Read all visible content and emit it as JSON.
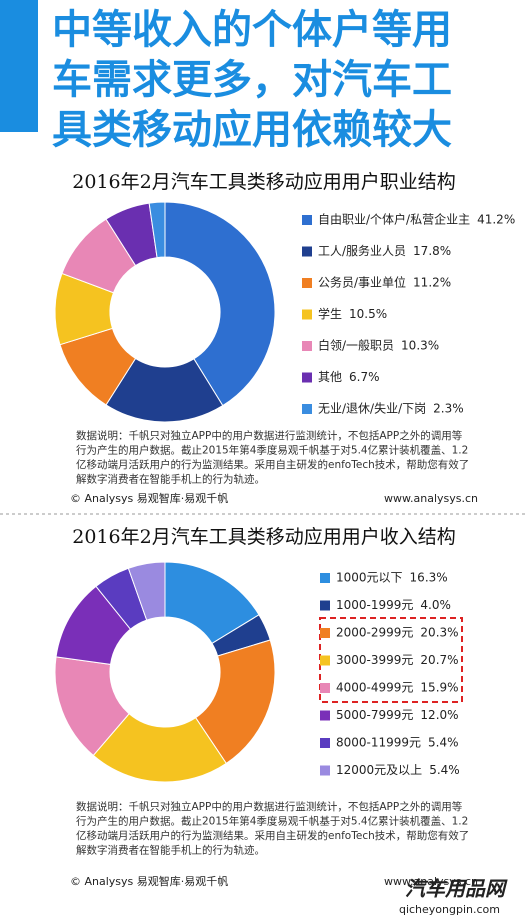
{
  "header": {
    "lines": [
      "中等收入的个体户等用",
      "车需求更多，对汽车工",
      "具类移动应用依赖较大"
    ]
  },
  "chart_data": [
    {
      "type": "pie",
      "title": "2016年2月汽车工具类移动应用用户职业结构",
      "categories": [
        "自由职业/个体户/私营企业主",
        "工人/服务业人员",
        "公务员/事业单位",
        "学生",
        "白领/一般职员",
        "其他",
        "无业/退休/失业/下岗"
      ],
      "values": [
        41.2,
        17.8,
        11.2,
        10.5,
        10.3,
        6.7,
        2.3
      ],
      "value_labels": [
        "41.2%",
        "17.8%",
        "11.2%",
        "10.5%",
        "10.3%",
        "6.7%",
        "2.3%"
      ],
      "colors": [
        "#2e6fd0",
        "#1f3f8f",
        "#f07f22",
        "#f5c320",
        "#e887b6",
        "#6a2fb0",
        "#3a8de0"
      ],
      "note": [
        "数据说明：千帆只对独立APP中的用户数据进行监测统计，不包括APP之外的调用等",
        "行为产生的用户数据。截止2015年第4季度易观千帆基于对5.4亿累计装机覆盖、1.2",
        "亿移动端月活跃用户的行为监测结果。采用自主研发的enfoTech技术，帮助您有效了",
        "解数字消费者在智能手机上的行为轨迹。"
      ],
      "source": "© Analysys 易观智库·易观千帆",
      "url": "www.analysys.cn"
    },
    {
      "type": "pie",
      "title": "2016年2月汽车工具类移动应用用户收入结构",
      "categories": [
        "1000元以下",
        "1000-1999元",
        "2000-2999元",
        "3000-3999元",
        "4000-4999元",
        "5000-7999元",
        "8000-11999元",
        "12000元及以上"
      ],
      "values": [
        16.3,
        4.0,
        20.3,
        20.7,
        15.9,
        12.0,
        5.4,
        5.4
      ],
      "value_labels": [
        "16.3%",
        "4.0%",
        "20.3%",
        "20.7%",
        "15.9%",
        "12.0%",
        "5.4%",
        "5.4%"
      ],
      "colors": [
        "#2d8ee0",
        "#1f3f8f",
        "#f07f22",
        "#f5c320",
        "#e887b6",
        "#7a2fb8",
        "#5a3cc0",
        "#9a8ae0"
      ],
      "note": [
        "数据说明：千帆只对独立APP中的用户数据进行监测统计，不包括APP之外的调用等",
        "行为产生的用户数据。截止2015年第4季度易观千帆基于对5.4亿累计装机覆盖、1.2",
        "亿移动端月活跃用户的行为监测结果。采用自主研发的enfoTech技术，帮助您有效了",
        "解数字消费者在智能手机上的行为轨迹。"
      ],
      "source": "© Analysys 易观智库·易观千帆",
      "url": "www.analysys.cn"
    }
  ],
  "watermark": {
    "name": "汽车用品网",
    "url": "qicheyongpin.com"
  }
}
